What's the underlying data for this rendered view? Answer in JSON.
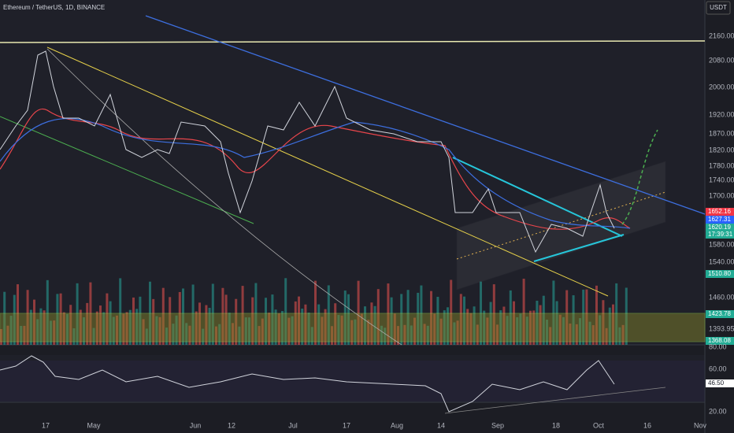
{
  "header": {
    "title": "Ethereum / TetherUS, 1D, BINANCE",
    "currency_button": "USDT"
  },
  "price_axis": {
    "labels": [
      "2160.00",
      "2080.00",
      "2000.00",
      "1920.00",
      "1870.00",
      "1820.00",
      "1780.00",
      "1740.00",
      "1700.00",
      "1580.00",
      "1540.00",
      "1460.00",
      "1393.95"
    ]
  },
  "price_badges": {
    "last": "1652.16",
    "ma": "1627.31",
    "current": "1620.19",
    "countdown": "17:39:31",
    "level_1": "1510.80",
    "zone_top": "1423.78",
    "zone_bottom": "1368.08"
  },
  "rsi_axis": {
    "labels": [
      "80.00",
      "60.00",
      "20.00"
    ],
    "value": "46.50"
  },
  "time_axis": {
    "labels": [
      "17",
      "May",
      "Jun",
      "12",
      "Jul",
      "17",
      "Aug",
      "14",
      "Sep",
      "18",
      "Oct",
      "16",
      "Nov"
    ]
  }
}
